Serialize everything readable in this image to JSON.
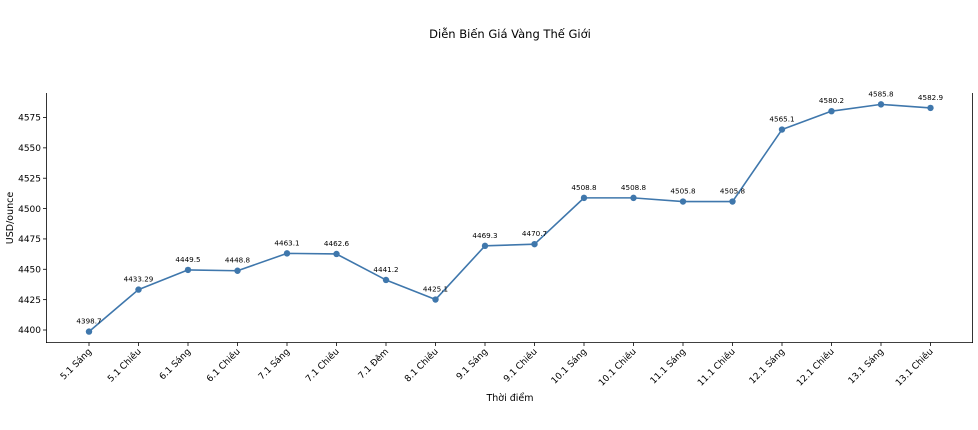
{
  "chart_data": {
    "type": "line",
    "title": "Diễn Biến Giá Vàng Thế Giới",
    "xlabel": "Thời điểm",
    "ylabel": "USD/ounce",
    "categories": [
      "5.1 Sáng",
      "5.1 Chiều",
      "6.1 Sáng",
      "6.1 Chiều",
      "7.1 Sáng",
      "7.1 Chiều",
      "7.1 Đêm",
      "8.1 Chiều",
      "9.1 Sáng",
      "9.1 Chiều",
      "10.1 Sáng",
      "10.1 Chiều",
      "11.1 Sáng",
      "11.1 Chiều",
      "12.1 Sáng",
      "12.1 Chiều",
      "13.1 Sáng",
      "13.1 Chiều"
    ],
    "values": [
      4398.7,
      4433.29,
      4449.5,
      4448.8,
      4463.1,
      4462.6,
      4441.2,
      4425.1,
      4469.3,
      4470.7,
      4508.8,
      4508.8,
      4505.8,
      4505.8,
      4565.1,
      4580.2,
      4585.8,
      4582.9
    ],
    "value_labels": [
      "4398.7",
      "4433.29",
      "4449.5",
      "4448.8",
      "4463.1",
      "4462.6",
      "4441.2",
      "4425.1",
      "4469.3",
      "4470.7",
      "4508.8",
      "4508.8",
      "4505.8",
      "4505.8",
      "4565.1",
      "4580.2",
      "4585.8",
      "4582.9"
    ],
    "yticks": [
      4400,
      4425,
      4450,
      4475,
      4500,
      4525,
      4550,
      4575
    ],
    "ylim": [
      4389.36,
      4595.14
    ],
    "grid": false,
    "legend": null,
    "line_color": "#3f77ac",
    "marker": "circle"
  }
}
